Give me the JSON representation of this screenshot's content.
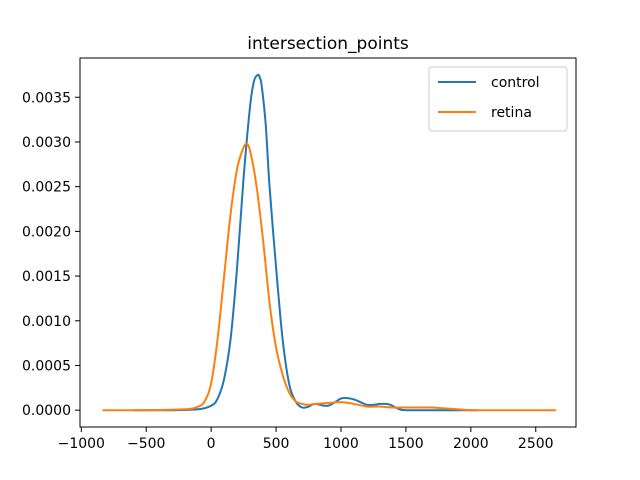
{
  "chart_data": {
    "type": "line",
    "title": "intersection_points",
    "xlabel": "",
    "ylabel": "",
    "xlim": [
      -1010,
      2810
    ],
    "ylim": [
      -0.000188,
      0.003939
    ],
    "x_ticks": [
      -1000,
      -500,
      0,
      500,
      1000,
      1500,
      2000,
      2500
    ],
    "x_tick_labels": [
      "−1000",
      "−500",
      "0",
      "500",
      "1000",
      "1500",
      "2000",
      "2500"
    ],
    "y_ticks": [
      0.0,
      0.0005,
      0.001,
      0.0015,
      0.002,
      0.0025,
      0.003,
      0.0035
    ],
    "y_tick_labels": [
      "0.0000",
      "0.0005",
      "0.0010",
      "0.0015",
      "0.0020",
      "0.0025",
      "0.0030",
      "0.0035"
    ],
    "grid": false,
    "legend_position": "upper right",
    "series": [
      {
        "name": "control",
        "color": "#1f77b4",
        "x": [
          -590,
          -300,
          -100,
          0,
          50,
          100,
          150,
          200,
          250,
          300,
          330,
          360,
          375,
          390,
          420,
          450,
          500,
          550,
          600,
          650,
          700,
          750,
          800,
          900,
          1000,
          1050,
          1100,
          1150,
          1200,
          1250,
          1300,
          1340,
          1380,
          1450,
          1500,
          1600,
          1800,
          2050
        ],
        "y": [
          0.0,
          0.0,
          1e-05,
          5e-05,
          0.00013,
          0.00035,
          0.0008,
          0.0016,
          0.0026,
          0.0034,
          0.00368,
          0.00375,
          0.00372,
          0.00362,
          0.0032,
          0.0025,
          0.0016,
          0.0008,
          0.0003,
          0.0001,
          3e-05,
          4e-05,
          7e-05,
          5e-05,
          0.00013,
          0.000135,
          0.00012,
          9e-05,
          6e-05,
          6e-05,
          7e-05,
          7e-05,
          6e-05,
          1e-05,
          0.0,
          0.0,
          0.0,
          0.0
        ]
      },
      {
        "name": "retina",
        "color": "#ff7f0e",
        "x": [
          -830,
          -500,
          -200,
          -100,
          -50,
          0,
          50,
          100,
          150,
          200,
          240,
          270,
          300,
          350,
          400,
          450,
          500,
          550,
          600,
          650,
          700,
          750,
          800,
          900,
          1000,
          1100,
          1200,
          1250,
          1300,
          1400,
          1500,
          1600,
          1700,
          1800,
          1900,
          2000,
          2200,
          2650
        ],
        "y": [
          0.0,
          0.0,
          1e-05,
          4e-05,
          0.0001,
          0.0003,
          0.0008,
          0.0015,
          0.0022,
          0.0027,
          0.0029,
          0.00298,
          0.0029,
          0.0025,
          0.0019,
          0.0012,
          0.0007,
          0.0004,
          0.0002,
          0.0001,
          7e-05,
          6e-05,
          7e-05,
          8e-05,
          9e-05,
          7e-05,
          4e-05,
          4e-05,
          4e-05,
          3e-05,
          3e-05,
          3e-05,
          3e-05,
          2e-05,
          1e-05,
          0.0,
          0.0,
          0.0
        ]
      }
    ]
  }
}
